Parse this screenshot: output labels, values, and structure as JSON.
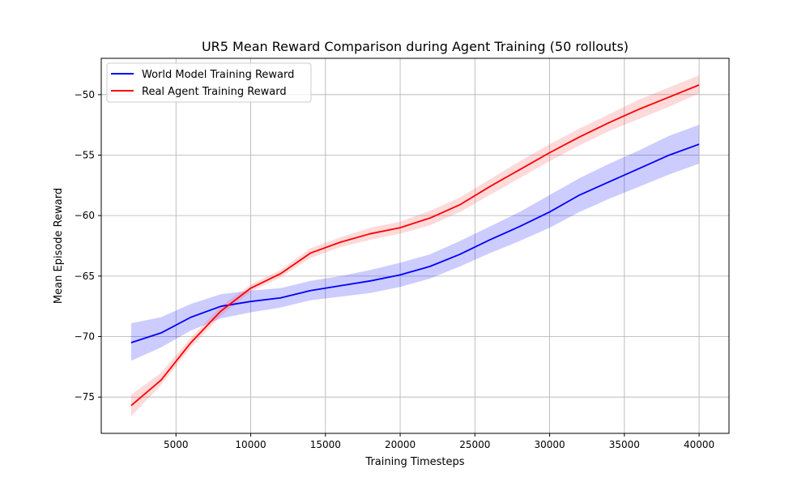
{
  "chart_data": {
    "type": "line",
    "title": "UR5 Mean Reward Comparison during Agent Training (50 rollouts)",
    "xlabel": "Training Timesteps",
    "ylabel": "Mean Episode Reward",
    "xlim": [
      0,
      42000
    ],
    "ylim": [
      -78,
      -47
    ],
    "xticks": [
      5000,
      10000,
      15000,
      20000,
      25000,
      30000,
      35000,
      40000
    ],
    "yticks": [
      -75,
      -70,
      -65,
      -60,
      -55,
      -50
    ],
    "grid": true,
    "legend_position": "upper-left",
    "x": [
      2000,
      4000,
      6000,
      8000,
      10000,
      12000,
      14000,
      16000,
      18000,
      20000,
      22000,
      24000,
      26000,
      28000,
      30000,
      32000,
      34000,
      36000,
      38000,
      40000
    ],
    "series": [
      {
        "name": "World Model Training Reward",
        "color": "#0000ff",
        "band_color": "#0000ff",
        "values": [
          -70.5,
          -69.7,
          -68.4,
          -67.5,
          -67.1,
          -66.8,
          -66.2,
          -65.8,
          -65.4,
          -64.9,
          -64.2,
          -63.2,
          -62.0,
          -60.9,
          -59.7,
          -58.3,
          -57.2,
          -56.1,
          -55.0,
          -54.1
        ],
        "lower": [
          -72.0,
          -70.9,
          -69.5,
          -68.5,
          -68.0,
          -67.6,
          -67.0,
          -66.7,
          -66.4,
          -65.9,
          -65.2,
          -64.2,
          -63.1,
          -62.1,
          -61.0,
          -59.7,
          -58.6,
          -57.6,
          -56.6,
          -55.7
        ],
        "upper": [
          -68.9,
          -68.4,
          -67.3,
          -66.5,
          -66.2,
          -66.0,
          -65.4,
          -65.0,
          -64.5,
          -63.9,
          -63.2,
          -62.1,
          -60.9,
          -59.7,
          -58.3,
          -56.9,
          -55.7,
          -54.6,
          -53.4,
          -52.5
        ]
      },
      {
        "name": "Real Agent Training Reward",
        "color": "#ff0000",
        "band_color": "#ff4444",
        "values": [
          -75.7,
          -73.6,
          -70.5,
          -67.9,
          -66.0,
          -64.8,
          -63.1,
          -62.2,
          -61.5,
          -61.0,
          -60.2,
          -59.1,
          -57.6,
          -56.2,
          -54.8,
          -53.5,
          -52.3,
          -51.2,
          -50.2,
          -49.2
        ],
        "lower": [
          -76.6,
          -74.0,
          -70.9,
          -68.3,
          -66.3,
          -65.1,
          -63.5,
          -62.6,
          -62.0,
          -61.5,
          -60.8,
          -59.7,
          -58.3,
          -56.9,
          -55.5,
          -54.2,
          -53.0,
          -52.0,
          -51.0,
          -49.9
        ],
        "upper": [
          -74.8,
          -73.0,
          -70.1,
          -67.5,
          -65.7,
          -64.5,
          -62.7,
          -61.8,
          -61.0,
          -60.5,
          -59.6,
          -58.5,
          -57.0,
          -55.5,
          -54.1,
          -52.8,
          -51.6,
          -50.4,
          -49.4,
          -48.4
        ]
      }
    ]
  },
  "legend": {
    "items": [
      {
        "label": "World Model Training Reward",
        "color": "#0000ff"
      },
      {
        "label": "Real Agent Training Reward",
        "color": "#ff0000"
      }
    ]
  }
}
